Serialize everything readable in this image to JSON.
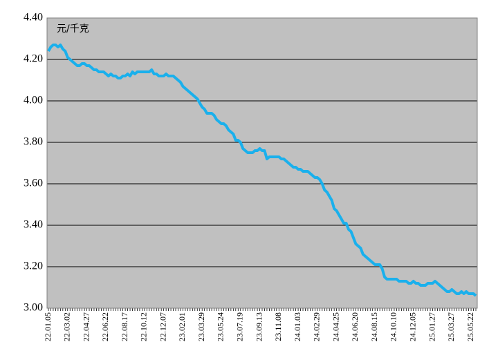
{
  "chart_data": {
    "type": "line",
    "annotation": "元/千克",
    "color": "#1ab0ec",
    "grid": true,
    "ylim": [
      3.0,
      4.4
    ],
    "yticks": [
      {
        "value": 3.0,
        "label": "3.00"
      },
      {
        "value": 3.2,
        "label": "3.20"
      },
      {
        "value": 3.4,
        "label": "3.40"
      },
      {
        "value": 3.6,
        "label": "3.60"
      },
      {
        "value": 3.8,
        "label": "3.80"
      },
      {
        "value": 4.0,
        "label": "4.00"
      },
      {
        "value": 4.2,
        "label": "4.20"
      },
      {
        "value": 4.4,
        "label": "4.40"
      }
    ],
    "categories": [
      "22.01.05",
      null,
      null,
      null,
      null,
      null,
      null,
      null,
      "22.03.02",
      null,
      null,
      null,
      null,
      null,
      null,
      null,
      "22.04.27",
      null,
      null,
      null,
      null,
      null,
      null,
      null,
      "22.06.22",
      null,
      null,
      null,
      null,
      null,
      null,
      null,
      "22.08.17",
      null,
      null,
      null,
      null,
      null,
      null,
      null,
      "22.10.12",
      null,
      null,
      null,
      null,
      null,
      null,
      null,
      "22.12.07",
      null,
      null,
      null,
      null,
      null,
      null,
      null,
      "23.02.01",
      null,
      null,
      null,
      null,
      null,
      null,
      null,
      "23.03.29",
      null,
      null,
      null,
      null,
      null,
      null,
      null,
      "23.05.24",
      null,
      null,
      null,
      null,
      null,
      null,
      null,
      "23.07.19",
      null,
      null,
      null,
      null,
      null,
      null,
      null,
      "23.09.13",
      null,
      null,
      null,
      null,
      null,
      null,
      null,
      "23.11.08",
      null,
      null,
      null,
      null,
      null,
      null,
      null,
      "24.01.03",
      null,
      null,
      null,
      null,
      null,
      null,
      null,
      "24.02.29",
      null,
      null,
      null,
      null,
      null,
      null,
      null,
      "24.04.25",
      null,
      null,
      null,
      null,
      null,
      null,
      null,
      "24.06.20",
      null,
      null,
      null,
      null,
      null,
      null,
      null,
      "24.08.15",
      null,
      null,
      null,
      null,
      null,
      null,
      null,
      "24.10.10",
      null,
      null,
      null,
      null,
      null,
      null,
      null,
      "24.12.05",
      null,
      null,
      null,
      null,
      null,
      null,
      null,
      "25.01.27",
      null,
      null,
      null,
      null,
      null,
      null,
      null,
      "25.03.27",
      null,
      null,
      null,
      null,
      null,
      null,
      null,
      "25.05.22",
      null,
      null
    ],
    "values": [
      4.24,
      4.26,
      4.27,
      4.27,
      4.26,
      4.27,
      4.25,
      4.24,
      4.21,
      4.2,
      4.19,
      4.18,
      4.17,
      4.17,
      4.18,
      4.18,
      4.17,
      4.17,
      4.16,
      4.15,
      4.15,
      4.14,
      4.14,
      4.14,
      4.13,
      4.12,
      4.13,
      4.12,
      4.12,
      4.11,
      4.11,
      4.12,
      4.12,
      4.13,
      4.12,
      4.14,
      4.13,
      4.14,
      4.14,
      4.14,
      4.14,
      4.14,
      4.14,
      4.15,
      4.13,
      4.13,
      4.12,
      4.12,
      4.12,
      4.13,
      4.12,
      4.12,
      4.12,
      4.11,
      4.1,
      4.09,
      4.07,
      4.06,
      4.05,
      4.04,
      4.03,
      4.02,
      4.01,
      3.99,
      3.97,
      3.96,
      3.94,
      3.94,
      3.94,
      3.93,
      3.91,
      3.9,
      3.89,
      3.89,
      3.88,
      3.86,
      3.85,
      3.84,
      3.81,
      3.81,
      3.8,
      3.77,
      3.76,
      3.75,
      3.75,
      3.75,
      3.76,
      3.76,
      3.77,
      3.76,
      3.76,
      3.72,
      3.73,
      3.73,
      3.73,
      3.73,
      3.73,
      3.72,
      3.72,
      3.71,
      3.7,
      3.69,
      3.68,
      3.68,
      3.67,
      3.67,
      3.66,
      3.66,
      3.66,
      3.65,
      3.64,
      3.63,
      3.63,
      3.62,
      3.6,
      3.57,
      3.56,
      3.54,
      3.52,
      3.48,
      3.47,
      3.45,
      3.43,
      3.41,
      3.41,
      3.38,
      3.37,
      3.34,
      3.31,
      3.3,
      3.29,
      3.26,
      3.25,
      3.24,
      3.23,
      3.22,
      3.21,
      3.21,
      3.21,
      3.19,
      3.15,
      3.14,
      3.14,
      3.14,
      3.14,
      3.14,
      3.13,
      3.13,
      3.13,
      3.13,
      3.12,
      3.12,
      3.13,
      3.12,
      3.12,
      3.11,
      3.11,
      3.11,
      3.12,
      3.12,
      3.12,
      3.13,
      3.12,
      3.11,
      3.1,
      3.09,
      3.08,
      3.08,
      3.09,
      3.08,
      3.07,
      3.07,
      3.08,
      3.07,
      3.08,
      3.07,
      3.07,
      3.07,
      3.06
    ]
  }
}
